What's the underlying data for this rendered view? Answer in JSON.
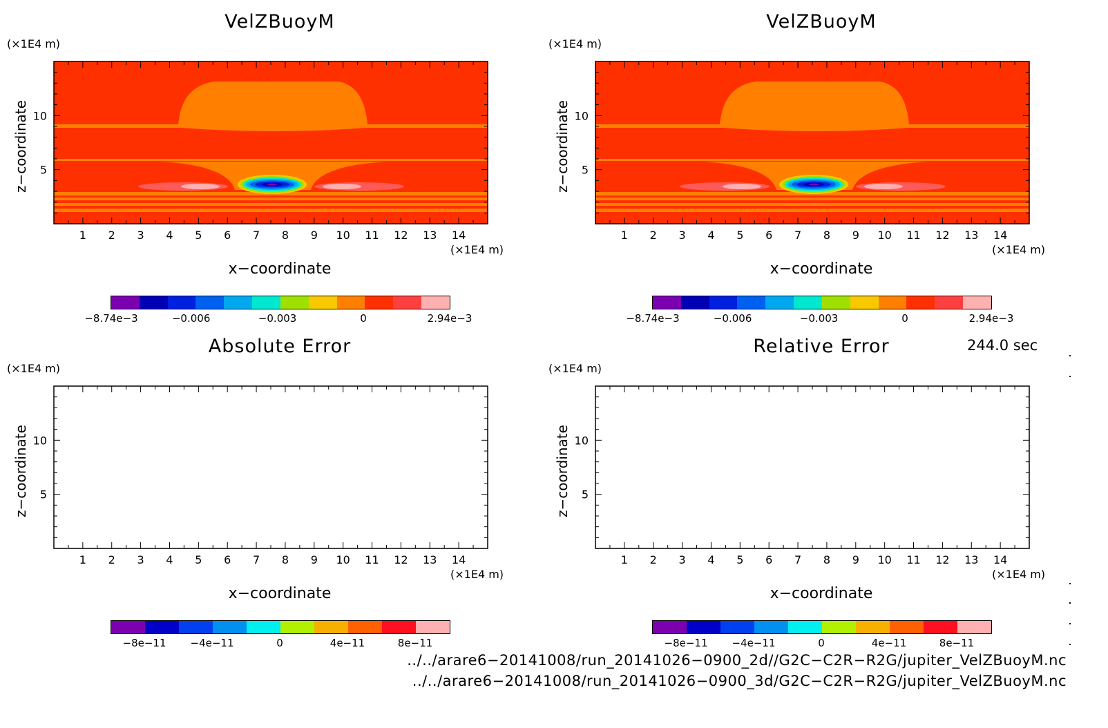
{
  "chart_data": [
    {
      "type": "heatmap",
      "title": "VelZBuoyM",
      "xlabel": "x−coordinate",
      "ylabel": "z−coordinate",
      "x_unit": "(×1E4 m)",
      "y_unit": "(×1E4 m)",
      "xlim": [
        0,
        15
      ],
      "ylim": [
        0,
        15
      ],
      "x_ticks": [
        "1",
        "2",
        "3",
        "4",
        "5",
        "6",
        "7",
        "8",
        "9",
        "10",
        "11",
        "12",
        "13",
        "14"
      ],
      "y_ticks": [
        "5",
        "10"
      ],
      "value_range": [
        -0.00874,
        0.00294
      ],
      "colorbar_labels": [
        "−8.74e−3",
        "−0.006",
        "−0.003",
        "0",
        "2.94e−3"
      ],
      "colorbar_colors": [
        "#7a00b0",
        "#0000b4",
        "#0020e0",
        "#0060f0",
        "#00a8f0",
        "#00e8d0",
        "#a0e000",
        "#f8c800",
        "#ff8000",
        "#ff3000",
        "#ff4040",
        "#ffb0b0"
      ]
    },
    {
      "type": "heatmap",
      "title": "VelZBuoyM",
      "xlabel": "x−coordinate",
      "ylabel": "z−coordinate",
      "x_unit": "(×1E4 m)",
      "y_unit": "(×1E4 m)",
      "xlim": [
        0,
        15
      ],
      "ylim": [
        0,
        15
      ],
      "x_ticks": [
        "1",
        "2",
        "3",
        "4",
        "5",
        "6",
        "7",
        "8",
        "9",
        "10",
        "11",
        "12",
        "13",
        "14"
      ],
      "y_ticks": [
        "5",
        "10"
      ],
      "value_range": [
        -0.00874,
        0.00294
      ],
      "colorbar_labels": [
        "−8.74e−3",
        "−0.006",
        "−0.003",
        "0",
        "2.94e−3"
      ],
      "colorbar_colors": [
        "#7a00b0",
        "#0000b4",
        "#0020e0",
        "#0060f0",
        "#00a8f0",
        "#00e8d0",
        "#a0e000",
        "#f8c800",
        "#ff8000",
        "#ff3000",
        "#ff4040",
        "#ffb0b0"
      ]
    },
    {
      "type": "heatmap",
      "title": "Absolute Error",
      "xlabel": "x−coordinate",
      "ylabel": "z−coordinate",
      "x_unit": "(×1E4 m)",
      "y_unit": "(×1E4 m)",
      "xlim": [
        0,
        15
      ],
      "ylim": [
        0,
        15
      ],
      "x_ticks": [
        "1",
        "2",
        "3",
        "4",
        "5",
        "6",
        "7",
        "8",
        "9",
        "10",
        "11",
        "12",
        "13",
        "14"
      ],
      "y_ticks": [
        "5",
        "10"
      ],
      "values": "empty",
      "colorbar_labels": [
        "−8e−11",
        "−4e−11",
        "0",
        "4e−11",
        "8e−11"
      ],
      "colorbar_colors": [
        "#7a00b0",
        "#0000c8",
        "#0040f0",
        "#0090f0",
        "#00f0f0",
        "#b0f000",
        "#f8b000",
        "#ff6000",
        "#ff1020",
        "#ffb0b0"
      ]
    },
    {
      "type": "heatmap",
      "title": "Relative Error",
      "xlabel": "x−coordinate",
      "ylabel": "z−coordinate",
      "x_unit": "(×1E4 m)",
      "y_unit": "(×1E4 m)",
      "xlim": [
        0,
        15
      ],
      "ylim": [
        0,
        15
      ],
      "x_ticks": [
        "1",
        "2",
        "3",
        "4",
        "5",
        "6",
        "7",
        "8",
        "9",
        "10",
        "11",
        "12",
        "13",
        "14"
      ],
      "y_ticks": [
        "5",
        "10"
      ],
      "values": "empty",
      "colorbar_labels": [
        "−8e−11",
        "−4e−11",
        "0",
        "4e−11",
        "8e−11"
      ],
      "colorbar_colors": [
        "#7a00b0",
        "#0000c8",
        "#0040f0",
        "#0090f0",
        "#00f0f0",
        "#b0f000",
        "#f8b000",
        "#ff6000",
        "#ff1020",
        "#ffb0b0"
      ]
    }
  ],
  "time_label": "244.0 sec",
  "paths": [
    "../../arare6−20141008/run_20141026−0900_2d//G2C−C2R−R2G/jupiter_VelZBuoyM.nc",
    "../../arare6−20141008/run_20141026−0900_3d/G2C−C2R−R2G/jupiter_VelZBuoyM.nc"
  ]
}
